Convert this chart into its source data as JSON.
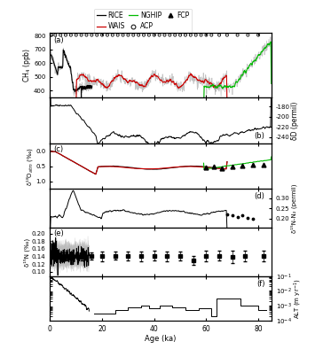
{
  "xlabel": "Age (ka)",
  "xlim": [
    0,
    85
  ],
  "xticks": [
    0,
    20,
    40,
    60,
    80
  ],
  "legend_labels": [
    "RICE",
    "WAIS",
    "NGHIP",
    "ACP",
    "FCP"
  ],
  "legend_colors": [
    "#000000",
    "#cc0000",
    "#00bb00",
    "#000000",
    "#000000"
  ],
  "panel_a": {
    "label": "(a)",
    "ylabel": "CH$_4$ (ppb)",
    "ylim": [
      350,
      820
    ],
    "yticks": [
      400,
      500,
      600,
      700,
      800
    ],
    "acp_x": [
      0.5,
      2,
      4,
      6,
      8,
      10,
      12,
      14,
      16,
      18,
      20,
      22,
      24,
      26,
      28,
      30,
      32,
      34,
      36,
      38,
      40,
      42,
      44,
      46,
      48,
      50,
      52,
      54,
      56,
      58,
      60,
      62,
      65,
      68,
      72,
      76,
      80
    ],
    "acp_y": 805
  },
  "panel_b": {
    "label": "(b)",
    "ylabel": "δD (permil)",
    "ylim": [
      -252,
      -162
    ],
    "yticks": [
      -240,
      -220,
      -200,
      -180
    ]
  },
  "panel_c": {
    "label": "(c)",
    "ylabel": "δ¹⁸O$_{atm}$ (‰)",
    "ylim": [
      1.25,
      -0.25
    ],
    "yticks": [
      0.0,
      0.5,
      1.0
    ]
  },
  "panel_d": {
    "label": "(d)",
    "ylabel": "δ¹⁵N-N₂ (permil)",
    "ylim": [
      0.155,
      0.345
    ],
    "yticks": [
      0.2,
      0.25,
      0.3
    ]
  },
  "panel_e": {
    "label": "(e)",
    "ylabel": "δ¹⁵N (‰)",
    "ylim": [
      0.088,
      0.215
    ],
    "yticks": [
      0.1,
      0.12,
      0.14,
      0.16,
      0.18,
      0.2
    ]
  },
  "panel_f": {
    "label": "(f)",
    "ylabel": "ALT (m yr$^{-1}$)",
    "ylim": [
      0.0001,
      0.1
    ],
    "yticks": [
      0.0001,
      0.001,
      0.01,
      0.1
    ]
  },
  "colors": {
    "rice": "#000000",
    "wais": "#cc0000",
    "nghip": "#00bb00",
    "gray": "#aaaaaa",
    "black": "#000000"
  }
}
